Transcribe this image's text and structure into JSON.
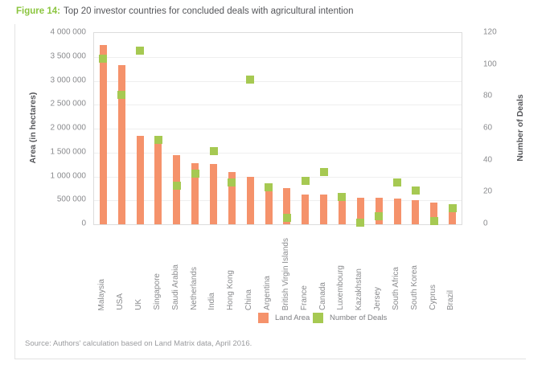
{
  "title": {
    "prefix": "Figure 14:",
    "text": "Top 20 investor countries for concluded deals with agricultural intention"
  },
  "source": "Source: Authors' calculation based on Land Matrix data, April 2016.",
  "colors": {
    "bar_orange": "#f5926b",
    "marker_green": "#a6c952",
    "title_green": "#8bc53f"
  },
  "chart_data": {
    "type": "bar",
    "title": "Top 20 investor countries for concluded deals with agricultural intention",
    "grid": true,
    "legend_position": "bottom",
    "categories": [
      "Malaysia",
      "USA",
      "UK",
      "Singapore",
      "Saudi Arabia",
      "Netherlands",
      "India",
      "Hong Kong",
      "China",
      "Argentina",
      "British Virgin Islands",
      "France",
      "Canada",
      "Luxembourg",
      "Kazakhstan",
      "Jersey",
      "South Africa",
      "South Korea",
      "Cyprus",
      "Brazil"
    ],
    "series": [
      {
        "name": "Land Area",
        "type": "bar",
        "axis": "left",
        "color": "#f5926b",
        "values": [
          3750000,
          3330000,
          1850000,
          1680000,
          1440000,
          1270000,
          1260000,
          1090000,
          1000000,
          820000,
          750000,
          630000,
          620000,
          610000,
          560000,
          550000,
          545000,
          500000,
          450000,
          410000
        ]
      },
      {
        "name": "Number of Deals",
        "type": "square-marker",
        "axis": "right",
        "color": "#a6c952",
        "values": [
          104,
          81,
          109,
          53,
          24,
          32,
          46,
          26,
          91,
          23,
          4,
          27,
          33,
          17,
          1,
          5,
          26,
          21,
          2,
          10
        ]
      }
    ],
    "left_axis": {
      "label": "Area (in hectares)",
      "min": 0,
      "max": 4000000,
      "tick_step": 500000,
      "tick_labels": [
        "4 000 000",
        "3 500 000",
        "3 000 000",
        "2 500 000",
        "2 000 000",
        "1 500 000",
        "1 000 000",
        "500 000",
        "0"
      ]
    },
    "right_axis": {
      "label": "Number of Deals",
      "min": 0,
      "max": 120,
      "tick_step": 20,
      "tick_labels": [
        "120",
        "100",
        "80",
        "60",
        "40",
        "20",
        "0"
      ]
    },
    "legend": [
      {
        "label": "Land Area",
        "color": "#f5926b"
      },
      {
        "label": "Number of Deals",
        "color": "#a6c952"
      }
    ]
  }
}
